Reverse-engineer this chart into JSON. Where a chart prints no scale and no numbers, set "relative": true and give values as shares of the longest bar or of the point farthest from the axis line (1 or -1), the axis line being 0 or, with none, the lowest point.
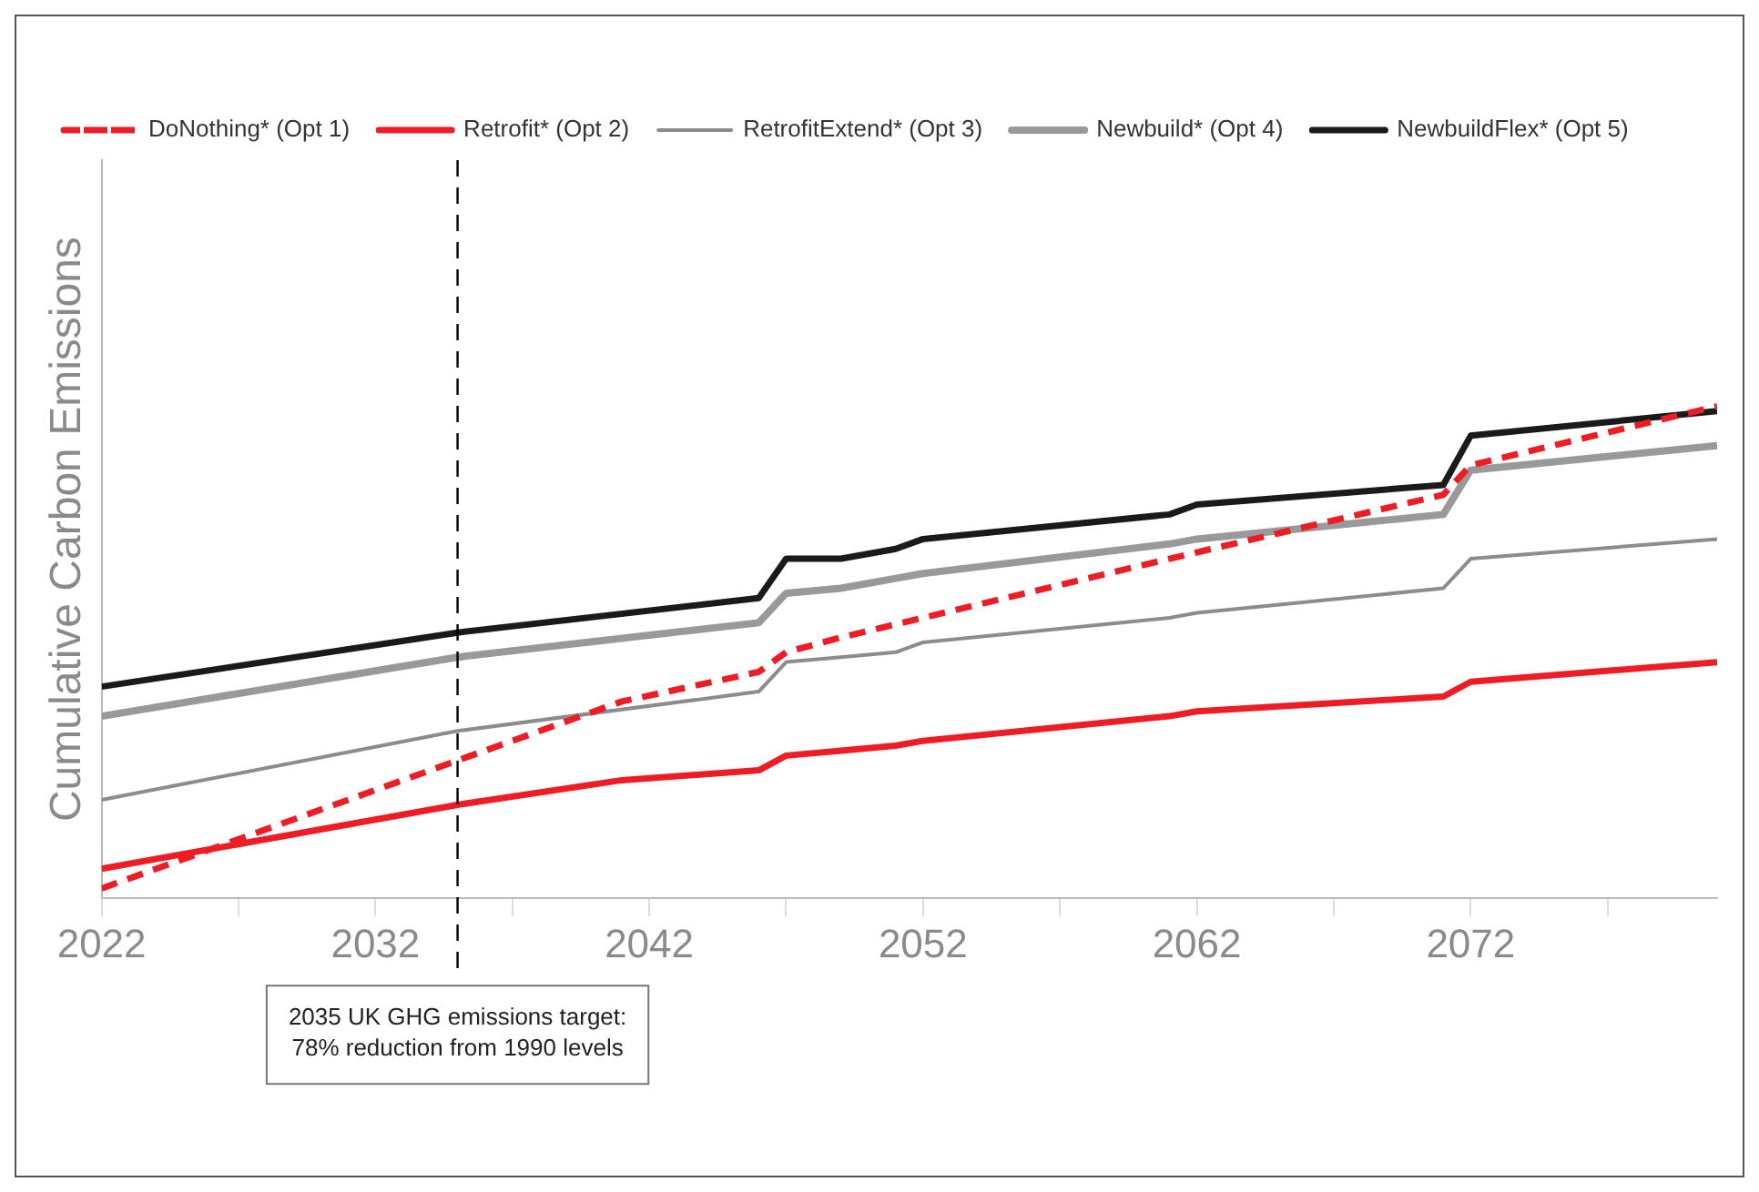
{
  "chart_data": {
    "type": "line",
    "relative": true,
    "ylabel": "Cumulative Carbon Emissions",
    "xlim": [
      2022,
      2081
    ],
    "xticks": [
      2022,
      {
        "value": 2027,
        "label": null
      },
      2032,
      {
        "value": 2037,
        "label": null
      },
      2042,
      {
        "value": 2047,
        "label": null
      },
      2052,
      {
        "value": 2057,
        "label": null
      },
      2062,
      {
        "value": 2067,
        "label": null
      },
      2072,
      {
        "value": 2077,
        "label": null
      }
    ],
    "series": [
      {
        "name": "DoNothing* (Opt 1)",
        "color": "#ee1c25",
        "line_style": "dashed",
        "x": [
          2022,
          2035,
          2041,
          2046,
          2047,
          2049,
          2061,
          2071,
          2072,
          2081
        ],
        "values": [
          0.02,
          0.28,
          0.4,
          0.46,
          0.5,
          0.53,
          0.69,
          0.82,
          0.88,
          1.0
        ]
      },
      {
        "name": "Retrofit* (Opt 2)",
        "color": "#ee1c25",
        "line_style": "solid",
        "x": [
          2022,
          2035,
          2041,
          2046,
          2047,
          2049,
          2051,
          2052,
          2061,
          2062,
          2071,
          2072,
          2081
        ],
        "values": [
          0.06,
          0.19,
          0.24,
          0.26,
          0.29,
          0.3,
          0.31,
          0.32,
          0.37,
          0.38,
          0.41,
          0.44,
          0.48
        ]
      },
      {
        "name": "RetrofitExtend* (Opt 3)",
        "color": "#8c8c8c",
        "line_style": "solid",
        "x": [
          2022,
          2035,
          2046,
          2047,
          2049,
          2051,
          2052,
          2061,
          2062,
          2071,
          2072,
          2081
        ],
        "values": [
          0.2,
          0.34,
          0.42,
          0.48,
          0.49,
          0.5,
          0.52,
          0.57,
          0.58,
          0.63,
          0.69,
          0.73
        ]
      },
      {
        "name": "Newbuild* (Opt 4)",
        "color": "#999999",
        "line_style": "solid",
        "x": [
          2022,
          2035,
          2046,
          2047,
          2049,
          2051,
          2052,
          2061,
          2062,
          2071,
          2072,
          2081
        ],
        "values": [
          0.37,
          0.49,
          0.56,
          0.62,
          0.63,
          0.65,
          0.66,
          0.72,
          0.73,
          0.78,
          0.87,
          0.92
        ]
      },
      {
        "name": "NewbuildFlex* (Opt 5)",
        "color": "#1a1a1a",
        "line_style": "solid",
        "x": [
          2022,
          2035,
          2046,
          2047,
          2049,
          2051,
          2052,
          2061,
          2062,
          2071,
          2072,
          2081
        ],
        "values": [
          0.43,
          0.54,
          0.61,
          0.69,
          0.69,
          0.71,
          0.73,
          0.78,
          0.8,
          0.84,
          0.94,
          0.99
        ]
      }
    ],
    "ref_lines": [
      {
        "axis": "x",
        "value": 2035,
        "label": "2035 UK GHG emissions target:\n78% reduction from 1990 levels",
        "color": "#000000",
        "line_style": "dashed"
      }
    ],
    "legend": "top",
    "marker": "none"
  }
}
